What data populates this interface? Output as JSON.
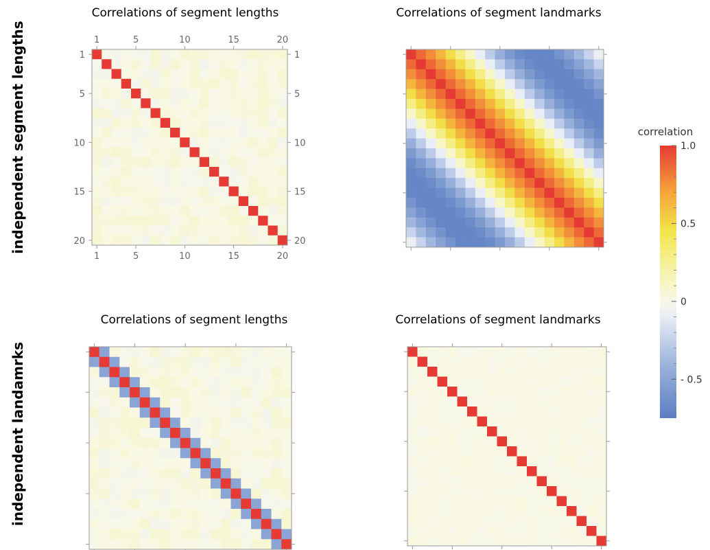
{
  "row_labels": [
    "independent segment lengths",
    "independent landamrks"
  ],
  "colorbar": {
    "title": "correlation",
    "range": [
      -0.75,
      1.0
    ],
    "tick_labels": [
      "1.0",
      "0.5",
      "0",
      "- 0.5"
    ],
    "tick_values": [
      1.0,
      0.5,
      0.0,
      -0.5
    ],
    "stops": [
      {
        "v": -0.75,
        "c": "#5b7ec2"
      },
      {
        "v": -0.4,
        "c": "#9db4dc"
      },
      {
        "v": -0.1,
        "c": "#e8edf6"
      },
      {
        "v": 0.0,
        "c": "#f8f8e8"
      },
      {
        "v": 0.2,
        "c": "#f6f3a8"
      },
      {
        "v": 0.45,
        "c": "#f2e44a"
      },
      {
        "v": 0.7,
        "c": "#f5a43a"
      },
      {
        "v": 1.0,
        "c": "#e63b35"
      }
    ]
  },
  "chart_data": [
    {
      "type": "heatmap",
      "id": "tl",
      "title": "Correlations of segment lengths",
      "n": 20,
      "pattern": "identity",
      "off_diagonal": 0.05,
      "tick_labels": [
        "1",
        "5",
        "10",
        "15",
        "20"
      ],
      "tick_values": [
        1,
        5,
        10,
        15,
        20
      ]
    },
    {
      "type": "heatmap",
      "id": "tr",
      "title": "Correlations of segment landmarks",
      "n": 20,
      "pattern": "smooth_cosine",
      "period": 13,
      "min": -0.7,
      "max": 1.0
    },
    {
      "type": "heatmap",
      "id": "bl",
      "title": "Correlations of segment lengths",
      "n": 20,
      "pattern": "tridiagonal",
      "diagonal": 1.0,
      "first_off_diagonal": -0.5,
      "off_diagonal": 0.05
    },
    {
      "type": "heatmap",
      "id": "br",
      "title": "Correlations of segment landmarks",
      "n": 20,
      "pattern": "identity",
      "off_diagonal": 0.02
    }
  ]
}
